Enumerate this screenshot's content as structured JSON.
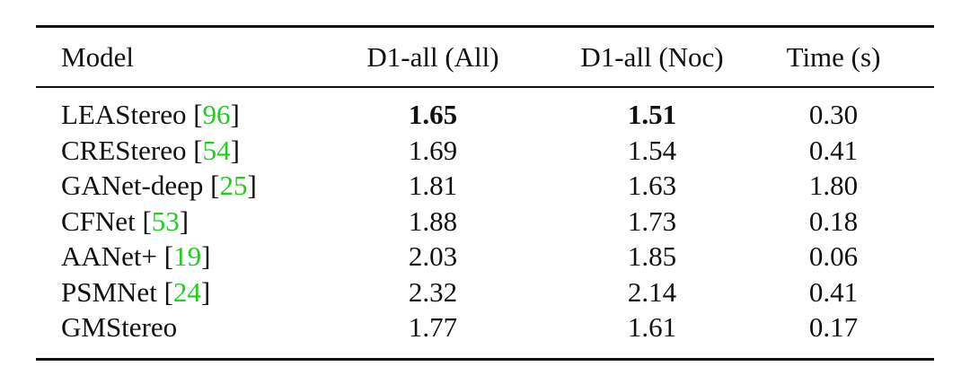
{
  "table": {
    "columns": [
      "Model",
      "D1-all (All)",
      "D1-all (Noc)",
      "Time (s)"
    ],
    "rows": [
      {
        "model": "LEAStereo ",
        "citation": {
          "open": "[",
          "ref": "96",
          "close": "]"
        },
        "cells": [
          "1.65",
          "1.51",
          "0.30"
        ],
        "bold": [
          true,
          true,
          false
        ]
      },
      {
        "model": "CREStereo ",
        "citation": {
          "open": "[",
          "ref": "54",
          "close": "]"
        },
        "cells": [
          "1.69",
          "1.54",
          "0.41"
        ],
        "bold": [
          false,
          false,
          false
        ]
      },
      {
        "model": "GANet-deep ",
        "citation": {
          "open": "[",
          "ref": "25",
          "close": "]"
        },
        "cells": [
          "1.81",
          "1.63",
          "1.80"
        ],
        "bold": [
          false,
          false,
          false
        ]
      },
      {
        "model": "CFNet ",
        "citation": {
          "open": "[",
          "ref": "53",
          "close": "]"
        },
        "cells": [
          "1.88",
          "1.73",
          "0.18"
        ],
        "bold": [
          false,
          false,
          false
        ]
      },
      {
        "model": "AANet+ ",
        "citation": {
          "open": "[",
          "ref": "19",
          "close": "]"
        },
        "cells": [
          "2.03",
          "1.85",
          "0.06"
        ],
        "bold": [
          false,
          false,
          false
        ]
      },
      {
        "model": "PSMNet ",
        "citation": {
          "open": "[",
          "ref": "24",
          "close": "]"
        },
        "cells": [
          "2.32",
          "2.14",
          "0.41"
        ],
        "bold": [
          false,
          false,
          false
        ]
      },
      {
        "model": "GMStereo",
        "cells": [
          "1.77",
          "1.61",
          "0.17"
        ],
        "bold": [
          false,
          false,
          false
        ]
      }
    ]
  }
}
